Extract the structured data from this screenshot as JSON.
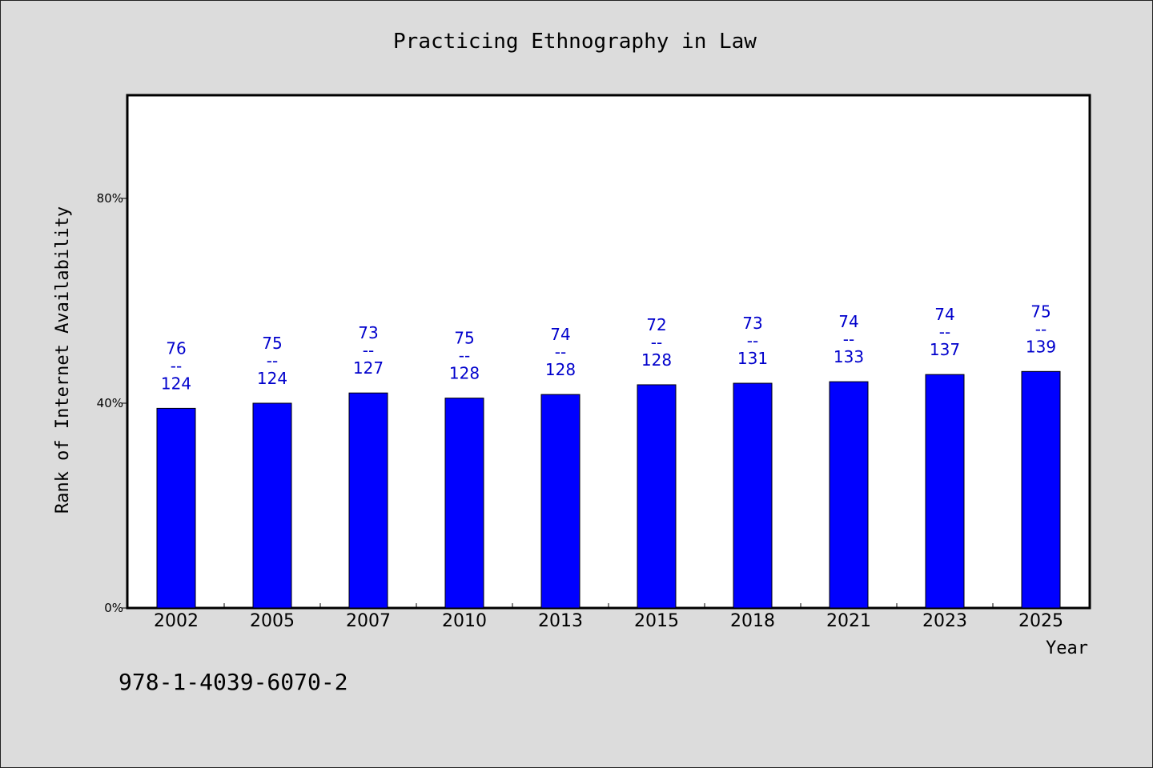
{
  "chart_data": {
    "type": "bar",
    "title": "Practicing Ethnography in Law",
    "xlabel": "Year",
    "ylabel": "Rank of Internet Availability",
    "categories": [
      "2002",
      "2005",
      "2007",
      "2010",
      "2013",
      "2015",
      "2018",
      "2021",
      "2023",
      "2025"
    ],
    "values": [
      39,
      40,
      42,
      41,
      41.7,
      43.6,
      43.9,
      44.2,
      45.6,
      46.2
    ],
    "labels_top": [
      "76",
      "75",
      "73",
      "75",
      "74",
      "72",
      "73",
      "74",
      "74",
      "75"
    ],
    "labels_sep": "--",
    "labels_bottom": [
      "124",
      "124",
      "127",
      "128",
      "128",
      "128",
      "131",
      "133",
      "137",
      "139"
    ],
    "ylim": [
      0,
      100
    ],
    "yticks": [
      0,
      40,
      80
    ],
    "ytick_labels": [
      "0%",
      "40%",
      "80%"
    ],
    "grid": false,
    "bar_color": "#0000ff",
    "label_color": "#0000cc"
  },
  "footer": {
    "isbn": "978-1-4039-6070-2"
  }
}
